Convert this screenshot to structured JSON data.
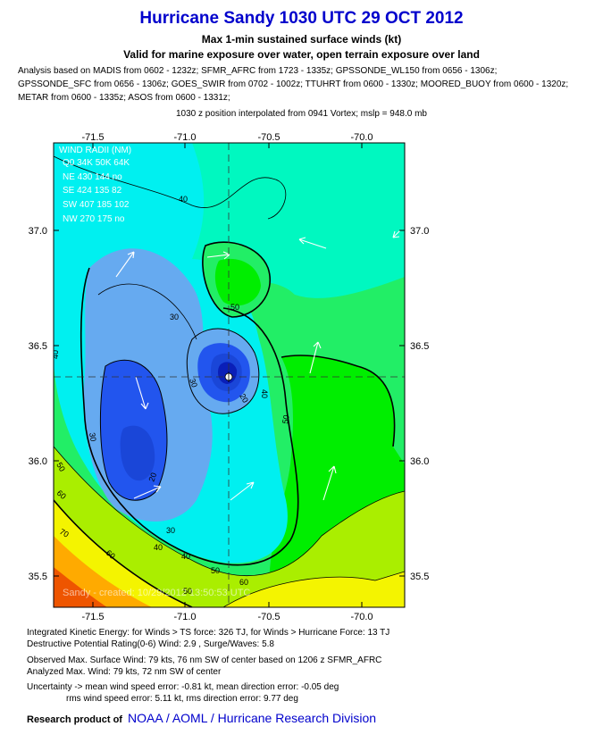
{
  "header": {
    "title": "Hurricane Sandy 1030 UTC 29 OCT 2012",
    "subtitle1": "Max 1-min sustained surface winds (kt)",
    "subtitle2": "Valid for marine exposure over water, open terrain exposure over land",
    "analysis_lines": [
      "Analysis based on MADIS from 0602 - 1232z; SFMR_AFRC from 1723 - 1335z; GPSSONDE_WL150 from 0656 - 1306z;",
      "GPSSONDE_SFC from 0656 - 1306z; GOES_SWIR from 0702 - 1002z; TTUHRT from 0600 - 1330z; MOORED_BUOY from 0600 - 1320z;",
      "METAR from 0600 - 1335z; ASOS from 0600 - 1331z;"
    ],
    "position_line": "1030 z position interpolated from 0941 Vortex; mslp = 948.0 mb"
  },
  "map": {
    "x_ticks": [
      "-71.5",
      "-71.0",
      "-70.5",
      "-70.0"
    ],
    "y_ticks": [
      "37.0",
      "36.5",
      "36.0",
      "35.5"
    ],
    "contour_labels": [
      "40",
      "50",
      "30",
      "40",
      "20",
      "30",
      "40",
      "50",
      "50",
      "60",
      "30",
      "20",
      "30",
      "40",
      "40",
      "50",
      "60",
      "70",
      "60",
      "50"
    ],
    "watermark": "Sandy - created: 10/29/2012 13:50:53 UTC",
    "center_icon": "hurricane-center-marker",
    "colors": {
      "calm_blue": "#2255ee",
      "light_blue": "#66aaf0",
      "cyan": "#00f0f0",
      "aqua_green": "#00f8c0",
      "green": "#22ee66",
      "bright_green": "#00ee00",
      "yellow_green": "#aaee00",
      "yellow": "#f4f400",
      "orange": "#ffaa00",
      "red_orange": "#ee5500"
    }
  },
  "wind_radii": {
    "title": "WIND RADII (NM)",
    "header": "Q0  34K 50K 64K",
    "rows": [
      "NE  430  144    no",
      "SE  424  135    82",
      "SW 407  185  102",
      "NW 270  175    no"
    ]
  },
  "footer": {
    "ike": "Integrated Kinetic Energy: for Winds > TS force: 326 TJ, for Winds > Hurricane Force: 13 TJ",
    "destructive": "Destructive Potential Rating(0-6)  Wind: 2.9 , Surge/Waves: 5.8",
    "observed_max": "Observed Max. Surface Wind: 79 kts, 76 nm SW of center based on 1206 z SFMR_AFRC",
    "analyzed_max": "Analyzed Max. Wind: 79 kts, 72 nm  SW of center",
    "uncertainty1": "Uncertainty -> mean wind speed error:  -0.81 kt, mean direction error:  -0.05 deg",
    "uncertainty2": "rms wind speed error: 5.11 kt, rms direction error: 9.77 deg",
    "research_label": "Research product of",
    "org": "NOAA  /  AOML  /  Hurricane Research Division"
  }
}
